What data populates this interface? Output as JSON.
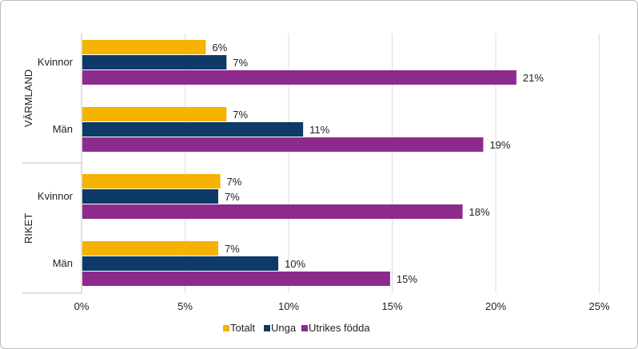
{
  "chart_data": {
    "type": "bar",
    "orientation": "horizontal",
    "xlim": [
      0,
      0.25
    ],
    "xticks": [
      "0%",
      "5%",
      "10%",
      "15%",
      "20%",
      "25%"
    ],
    "grid": true,
    "legend_position": "bottom",
    "groups": [
      {
        "name": "VÄRMLAND",
        "categories": [
          {
            "label": "Kvinnor",
            "values": [
              0.06,
              0.07,
              0.21
            ],
            "labels": [
              "6%",
              "7%",
              "21%"
            ]
          },
          {
            "label": "Män",
            "values": [
              0.07,
              0.107,
              0.194
            ],
            "labels": [
              "7%",
              "11%",
              "19%"
            ]
          }
        ]
      },
      {
        "name": "RIKET",
        "categories": [
          {
            "label": "Kvinnor",
            "values": [
              0.067,
              0.066,
              0.184
            ],
            "labels": [
              "7%",
              "7%",
              "18%"
            ]
          },
          {
            "label": "Män",
            "values": [
              0.066,
              0.095,
              0.149
            ],
            "labels": [
              "7%",
              "10%",
              "15%"
            ]
          }
        ]
      }
    ],
    "series": [
      {
        "name": "Totalt",
        "color": "#f6b200"
      },
      {
        "name": "Unga",
        "color": "#0d3a66"
      },
      {
        "name": "Utrikes födda",
        "color": "#8d2b8d"
      }
    ]
  }
}
